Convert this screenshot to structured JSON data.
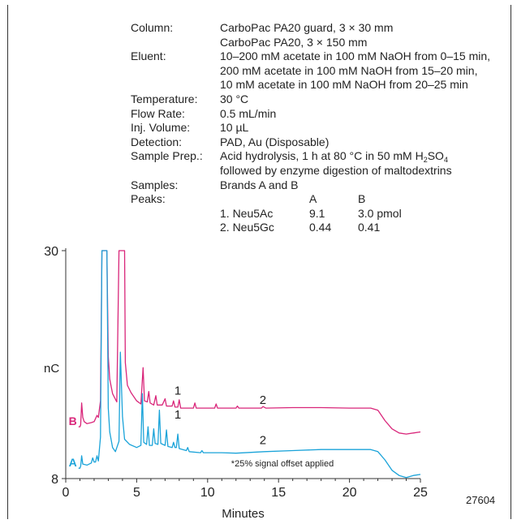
{
  "conditions": [
    {
      "label": "Column:",
      "lines": [
        "CarboPac PA20 guard, 3 × 30 mm",
        "CarboPac PA20, 3 × 150 mm"
      ]
    },
    {
      "label": "Eluent:",
      "lines": [
        "10–200 mM acetate in 100 mM NaOH from 0–15 min,",
        "200 mM acetate in 100 mM NaOH from 15–20 min,",
        "10 mM acetate in 100 mM NaOH from 20–25 min"
      ]
    },
    {
      "label": "Temperature:",
      "lines": [
        "30 °C"
      ]
    },
    {
      "label": "Flow Rate:",
      "lines": [
        "0.5 mL/min"
      ]
    },
    {
      "label": "Inj. Volume:",
      "lines": [
        "10 µL"
      ]
    },
    {
      "label": "Detection:",
      "lines": [
        "PAD, Au (Disposable)"
      ]
    }
  ],
  "sample_prep": {
    "label": "Sample Prep.:",
    "line1_pre": "Acid hydrolysis, 1 h at 80 °C in 50 mM H",
    "sub1": "2",
    "mid": "SO",
    "sub2": "4",
    "line2": "followed by enzyme digestion of maltodextrins"
  },
  "samples": {
    "label": "Samples:",
    "value": "Brands A and B"
  },
  "peaks": {
    "label": "Peaks:",
    "col_a": "A",
    "col_b": "B",
    "rows": [
      {
        "name": "1. Neu5Ac",
        "a": "9.1",
        "b": "3.0 pmol"
      },
      {
        "name": "2. Neu5Gc",
        "a": "0.44",
        "b": "0.41"
      }
    ]
  },
  "offset_note": "*25% signal offset applied",
  "catalog_number": "27604",
  "chart_data": {
    "type": "line",
    "xlabel": "Minutes",
    "ylabel": "nC",
    "xlim": [
      0,
      25
    ],
    "ylim": [
      8,
      30
    ],
    "x_ticks": [
      0,
      5,
      10,
      15,
      20,
      25
    ],
    "y_ticks": [
      8,
      30
    ],
    "colors": {
      "A": "#1aa3d9",
      "B": "#d9267a"
    },
    "peak_labels": [
      {
        "text": "1",
        "trace": "B",
        "x": 7.9,
        "y": 15.8
      },
      {
        "text": "2",
        "trace": "B",
        "x": 13.9,
        "y": 14.9
      },
      {
        "text": "1",
        "trace": "A",
        "x": 7.9,
        "y": 13.5
      },
      {
        "text": "2",
        "trace": "A",
        "x": 13.9,
        "y": 11.0
      }
    ],
    "series": [
      {
        "name": "B",
        "points": [
          [
            0.9,
            13.0
          ],
          [
            1.0,
            13.0
          ],
          [
            1.05,
            13.2
          ],
          [
            1.12,
            15.3
          ],
          [
            1.2,
            13.9
          ],
          [
            1.3,
            13.5
          ],
          [
            1.5,
            13.3
          ],
          [
            1.8,
            13.4
          ],
          [
            2.0,
            13.5
          ],
          [
            2.2,
            14.1
          ],
          [
            2.3,
            13.9
          ],
          [
            2.45,
            15.5
          ],
          [
            2.55,
            30
          ],
          [
            2.9,
            30
          ],
          [
            3.0,
            19.8
          ],
          [
            3.1,
            17.6
          ],
          [
            3.3,
            16.2
          ],
          [
            3.6,
            15.4
          ],
          [
            3.75,
            30
          ],
          [
            4.15,
            30
          ],
          [
            4.2,
            19.2
          ],
          [
            4.35,
            17.0
          ],
          [
            4.6,
            16.3
          ],
          [
            5.0,
            15.5
          ],
          [
            5.3,
            15.2
          ],
          [
            5.45,
            18.7
          ],
          [
            5.55,
            15.5
          ],
          [
            5.75,
            15.4
          ],
          [
            5.85,
            16.4
          ],
          [
            5.95,
            15.3
          ],
          [
            6.2,
            15.1
          ],
          [
            6.35,
            16.0
          ],
          [
            6.45,
            15.1
          ],
          [
            6.8,
            15.1
          ],
          [
            7.0,
            15.7
          ],
          [
            7.1,
            15.0
          ],
          [
            7.5,
            15.0
          ],
          [
            7.6,
            15.5
          ],
          [
            7.7,
            14.9
          ],
          [
            7.9,
            14.9
          ],
          [
            8.0,
            15.6
          ],
          [
            8.1,
            14.8
          ],
          [
            9.0,
            14.8
          ],
          [
            9.1,
            15.3
          ],
          [
            9.2,
            14.8
          ],
          [
            10.5,
            14.8
          ],
          [
            10.6,
            15.2
          ],
          [
            10.7,
            14.8
          ],
          [
            12.0,
            14.8
          ],
          [
            12.1,
            15.0
          ],
          [
            12.2,
            14.8
          ],
          [
            13.8,
            14.8
          ],
          [
            13.9,
            14.95
          ],
          [
            14.1,
            14.8
          ],
          [
            16.0,
            14.85
          ],
          [
            18.0,
            14.85
          ],
          [
            20.0,
            14.8
          ],
          [
            21.5,
            14.8
          ],
          [
            22.0,
            14.6
          ],
          [
            22.5,
            13.6
          ],
          [
            23.0,
            12.8
          ],
          [
            23.5,
            12.4
          ],
          [
            24.0,
            12.3
          ],
          [
            24.5,
            12.4
          ],
          [
            25.0,
            12.5
          ]
        ]
      },
      {
        "name": "A",
        "points": [
          [
            0.9,
            9.0
          ],
          [
            1.0,
            9.0
          ],
          [
            1.05,
            9.2
          ],
          [
            1.12,
            10.2
          ],
          [
            1.2,
            9.4
          ],
          [
            1.5,
            9.3
          ],
          [
            1.8,
            9.5
          ],
          [
            1.9,
            10.0
          ],
          [
            2.0,
            9.6
          ],
          [
            2.1,
            9.6
          ],
          [
            2.2,
            10.2
          ],
          [
            2.3,
            9.7
          ],
          [
            2.45,
            12.0
          ],
          [
            2.55,
            30
          ],
          [
            2.9,
            30
          ],
          [
            3.0,
            14.8
          ],
          [
            3.1,
            12.5
          ],
          [
            3.3,
            11.0
          ],
          [
            3.5,
            10.6
          ],
          [
            3.75,
            11.6
          ],
          [
            3.85,
            20.2
          ],
          [
            4.0,
            14.0
          ],
          [
            4.15,
            11.8
          ],
          [
            4.5,
            11.3
          ],
          [
            5.0,
            11.0
          ],
          [
            5.3,
            11.2
          ],
          [
            5.4,
            16.2
          ],
          [
            5.5,
            11.5
          ],
          [
            5.7,
            11.3
          ],
          [
            5.8,
            13.0
          ],
          [
            5.9,
            11.2
          ],
          [
            6.1,
            11.2
          ],
          [
            6.2,
            12.8
          ],
          [
            6.3,
            11.4
          ],
          [
            6.5,
            11.3
          ],
          [
            6.6,
            14.6
          ],
          [
            6.7,
            11.4
          ],
          [
            7.0,
            11.2
          ],
          [
            7.1,
            12.7
          ],
          [
            7.2,
            11.1
          ],
          [
            7.5,
            11.0
          ],
          [
            7.6,
            11.5
          ],
          [
            7.7,
            11.0
          ],
          [
            7.8,
            11.0
          ],
          [
            7.9,
            12.3
          ],
          [
            8.0,
            10.9
          ],
          [
            8.5,
            10.7
          ],
          [
            8.6,
            11.0
          ],
          [
            8.7,
            10.6
          ],
          [
            9.5,
            10.5
          ],
          [
            9.6,
            10.7
          ],
          [
            9.7,
            10.5
          ],
          [
            11.0,
            10.5
          ],
          [
            12.0,
            10.45
          ],
          [
            14.0,
            10.6
          ],
          [
            16.0,
            10.7
          ],
          [
            18.0,
            10.8
          ],
          [
            20.0,
            10.8
          ],
          [
            21.5,
            10.8
          ],
          [
            22.0,
            10.6
          ],
          [
            22.5,
            9.8
          ],
          [
            23.0,
            8.8
          ],
          [
            23.5,
            8.3
          ],
          [
            24.0,
            8.1
          ],
          [
            24.5,
            8.3
          ],
          [
            25.0,
            8.4
          ]
        ]
      }
    ]
  }
}
